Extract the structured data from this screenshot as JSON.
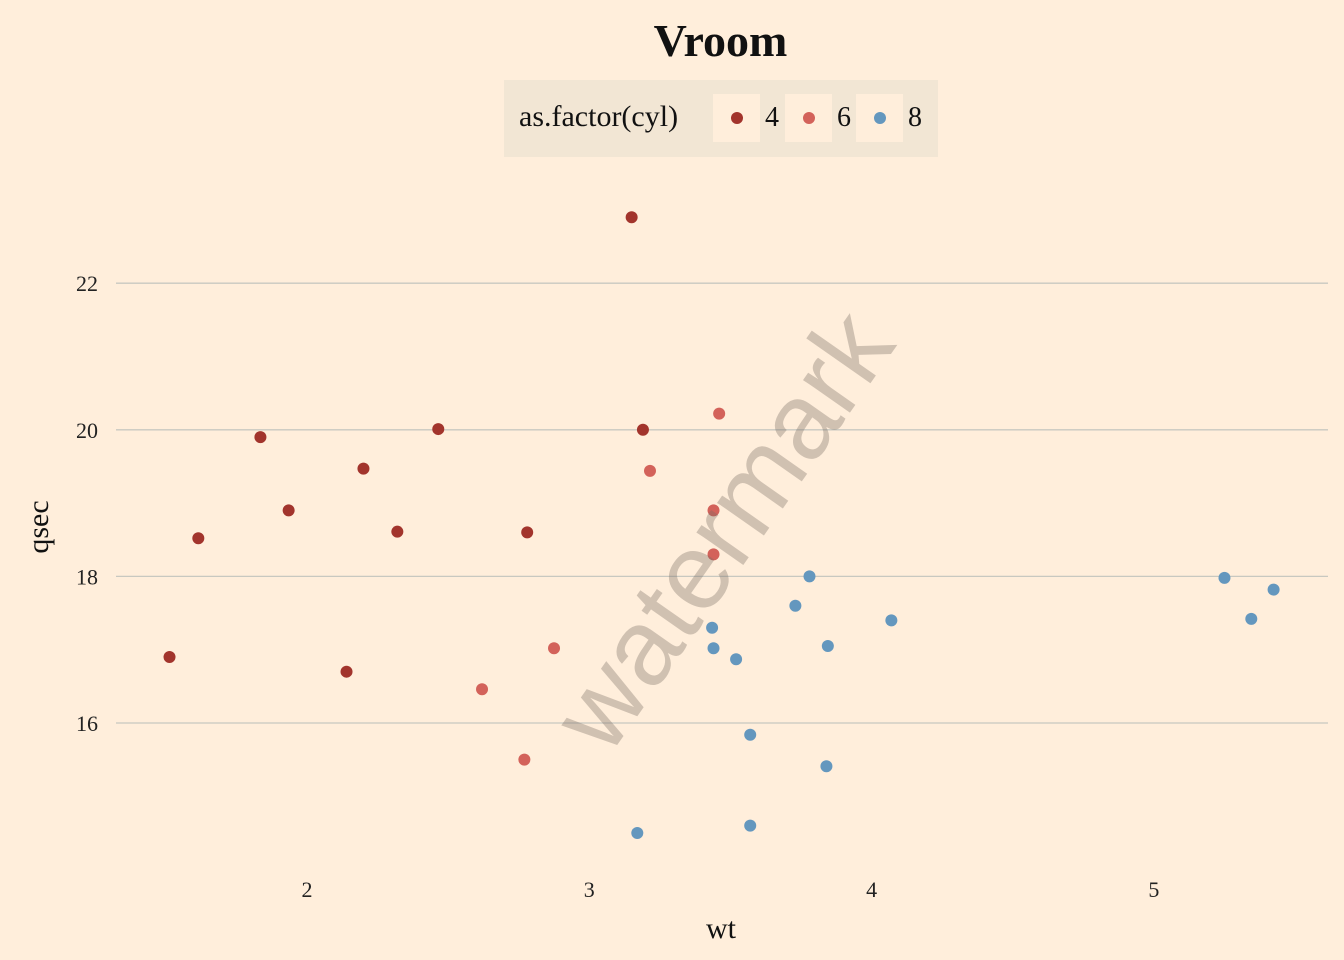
{
  "chart_data": {
    "type": "scatter",
    "title": "Vroom",
    "xlabel": "wt",
    "ylabel": "qsec",
    "xlim": [
      1.33,
      5.62
    ],
    "ylim": [
      14.0,
      23.6
    ],
    "x_ticks": [
      2,
      3,
      4,
      5
    ],
    "y_ticks": [
      16,
      18,
      20,
      22
    ],
    "grid": "horizontal major",
    "legend": {
      "title": "as.factor(cyl)",
      "position": "top",
      "entries": [
        "4",
        "6",
        "8"
      ]
    },
    "series": [
      {
        "name": "4",
        "color": "#A2342C",
        "points": [
          [
            2.32,
            18.61
          ],
          [
            3.19,
            20.0
          ],
          [
            3.15,
            22.9
          ],
          [
            2.2,
            19.47
          ],
          [
            1.615,
            18.52
          ],
          [
            1.835,
            19.9
          ],
          [
            2.465,
            20.01
          ],
          [
            1.935,
            18.9
          ],
          [
            2.14,
            16.7
          ],
          [
            1.513,
            16.9
          ],
          [
            2.78,
            18.6
          ]
        ]
      },
      {
        "name": "6",
        "color": "#D3625A",
        "points": [
          [
            2.62,
            16.46
          ],
          [
            2.875,
            17.02
          ],
          [
            3.215,
            19.44
          ],
          [
            3.46,
            20.22
          ],
          [
            3.44,
            18.3
          ],
          [
            3.44,
            18.9
          ],
          [
            2.77,
            15.5
          ]
        ]
      },
      {
        "name": "8",
        "color": "#6497BE",
        "points": [
          [
            3.44,
            17.02
          ],
          [
            3.57,
            15.84
          ],
          [
            4.07,
            17.4
          ],
          [
            3.73,
            17.6
          ],
          [
            3.78,
            18.0
          ],
          [
            5.25,
            17.98
          ],
          [
            5.424,
            17.82
          ],
          [
            5.345,
            17.42
          ],
          [
            3.52,
            16.87
          ],
          [
            3.435,
            17.3
          ],
          [
            3.84,
            15.41
          ],
          [
            3.845,
            17.05
          ],
          [
            3.17,
            14.5
          ],
          [
            3.57,
            14.6
          ]
        ]
      }
    ]
  },
  "watermark": "watermark"
}
